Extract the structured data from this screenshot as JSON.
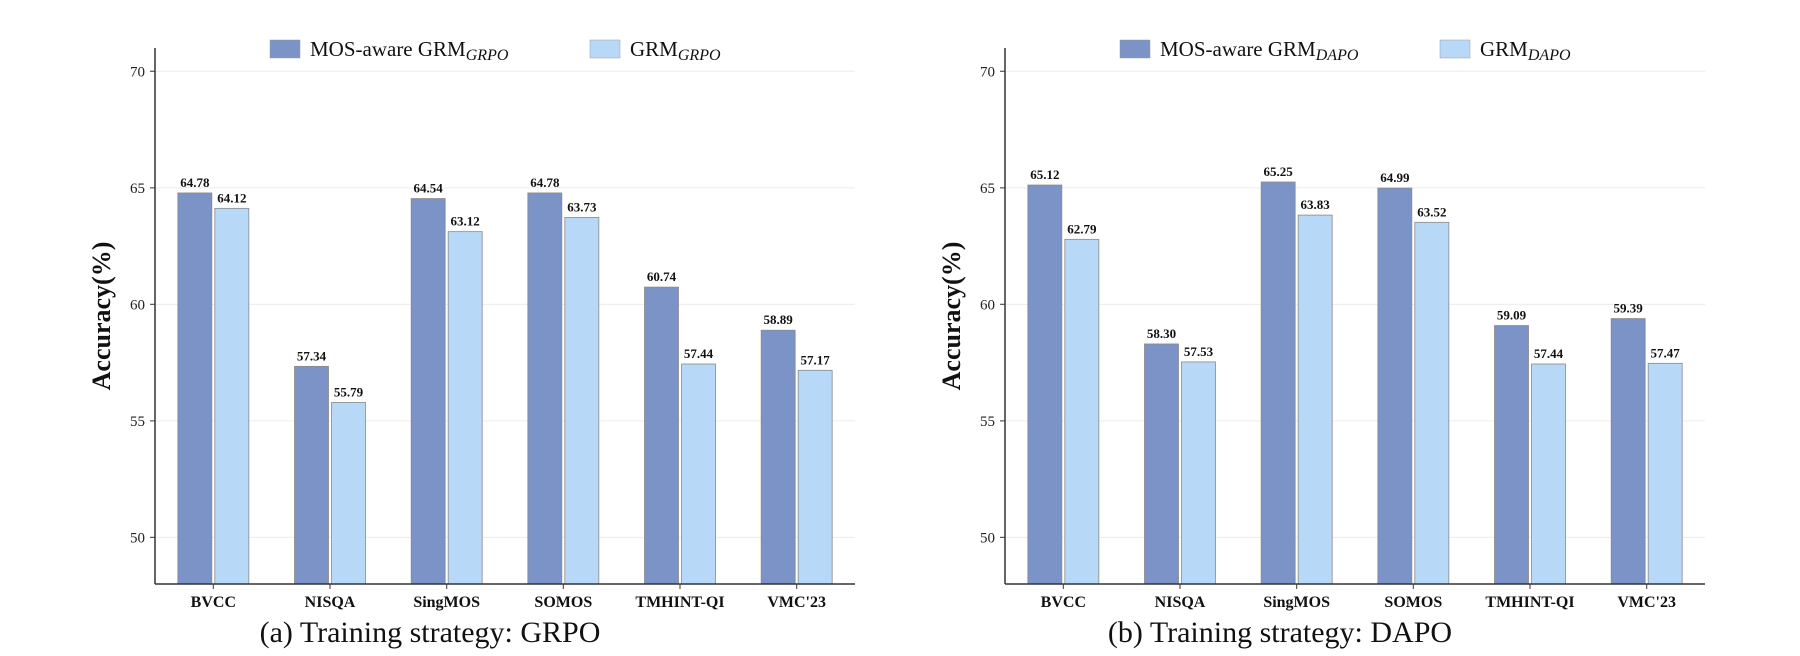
{
  "chart_data": [
    {
      "type": "bar",
      "caption": "(a) Training strategy: GRPO",
      "ylabel": "Accuracy(%)",
      "ylim": [
        48,
        71
      ],
      "yticks": [
        50,
        55,
        60,
        65,
        70
      ],
      "grid": true,
      "legend_position": "top-center",
      "categories": [
        "BVCC",
        "NISQA",
        "SingMOS",
        "SOMOS",
        "TMHINT-QI",
        "VMC'23"
      ],
      "series": [
        {
          "name": "MOS-aware GRM",
          "subscript": "GRPO",
          "color": "#7b93c6",
          "values": [
            64.78,
            57.34,
            64.54,
            64.78,
            60.74,
            58.89
          ]
        },
        {
          "name": "GRM",
          "subscript": "GRPO",
          "color": "#b7d9f7",
          "values": [
            64.12,
            55.79,
            63.12,
            63.73,
            57.44,
            57.17
          ]
        }
      ]
    },
    {
      "type": "bar",
      "caption": "(b) Training strategy: DAPO",
      "ylabel": "Accuracy(%)",
      "ylim": [
        48,
        71
      ],
      "yticks": [
        50,
        55,
        60,
        65,
        70
      ],
      "grid": true,
      "legend_position": "top-center",
      "categories": [
        "BVCC",
        "NISQA",
        "SingMOS",
        "SOMOS",
        "TMHINT-QI",
        "VMC'23"
      ],
      "series": [
        {
          "name": "MOS-aware GRM",
          "subscript": "DAPO",
          "color": "#7b93c6",
          "values": [
            65.12,
            58.3,
            65.25,
            64.99,
            59.09,
            59.39
          ]
        },
        {
          "name": "GRM",
          "subscript": "DAPO",
          "color": "#b7d9f7",
          "values": [
            62.79,
            57.53,
            63.83,
            63.52,
            57.44,
            57.47
          ]
        }
      ]
    }
  ]
}
